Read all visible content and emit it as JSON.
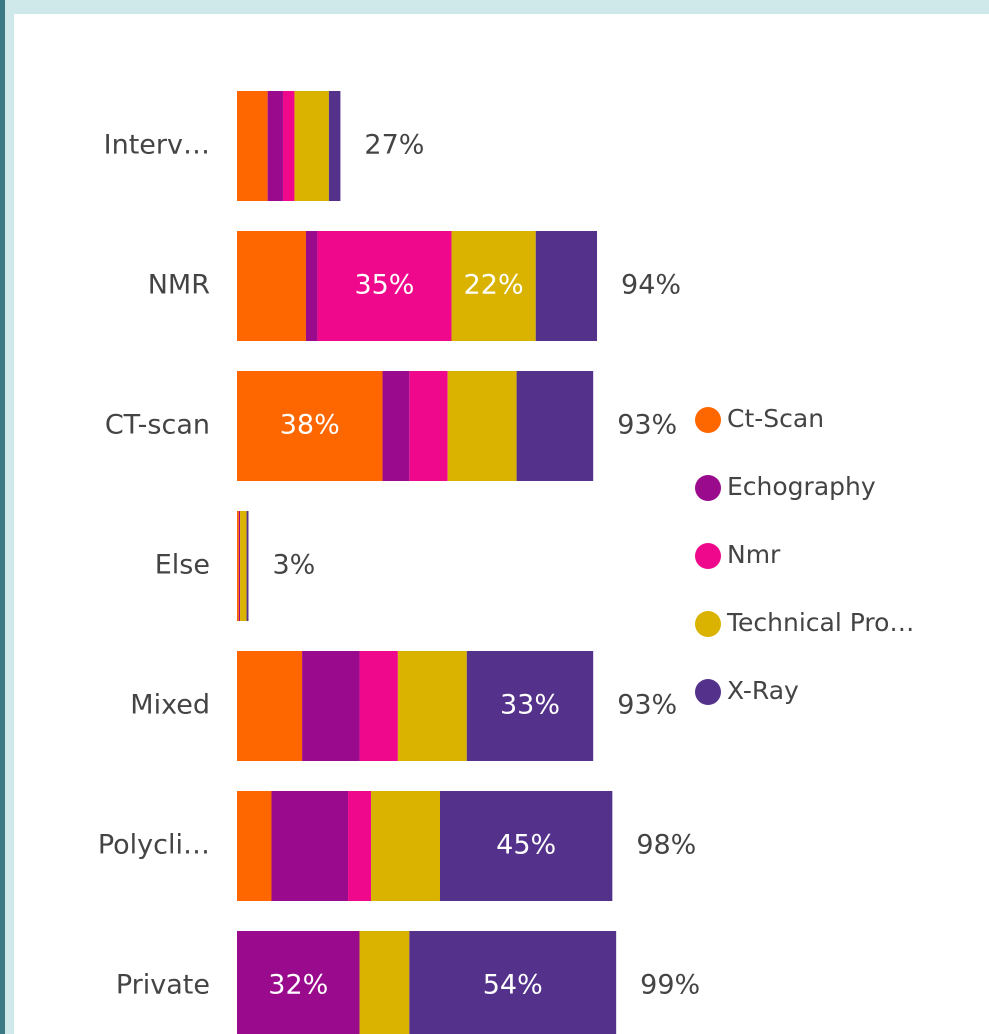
{
  "chart_data": {
    "type": "stacked-bar-horizontal",
    "categories": [
      "Interv…",
      "NMR",
      "CT-scan",
      "Else",
      "Mixed",
      "Polycli…",
      "Private"
    ],
    "series": [
      {
        "name": "Ct-Scan",
        "color": "#fe6600",
        "values": [
          8,
          18,
          38,
          0.5,
          17,
          9,
          0
        ],
        "value_labels": [
          null,
          null,
          "38%",
          null,
          null,
          null,
          null
        ]
      },
      {
        "name": "Echography",
        "color": "#990a8c",
        "values": [
          4,
          3,
          7,
          0.3,
          15,
          20,
          32
        ],
        "value_labels": [
          null,
          null,
          null,
          null,
          null,
          null,
          "32%"
        ]
      },
      {
        "name": "Nmr",
        "color": "#f0088c",
        "values": [
          3,
          35,
          10,
          0,
          10,
          6,
          0
        ],
        "value_labels": [
          null,
          "35%",
          null,
          null,
          null,
          null,
          null
        ]
      },
      {
        "name": "Technical Pro…",
        "color": "#d9b300",
        "values": [
          9,
          22,
          18,
          1.7,
          18,
          18,
          13
        ],
        "value_labels": [
          null,
          "22%",
          null,
          null,
          null,
          null,
          null
        ]
      },
      {
        "name": "X-Ray",
        "color": "#54318a",
        "values": [
          3,
          16,
          20,
          0.5,
          33,
          45,
          54
        ],
        "value_labels": [
          null,
          null,
          null,
          null,
          "33%",
          "45%",
          "54%"
        ]
      }
    ],
    "totals": [
      27,
      94,
      93,
      3,
      93,
      98,
      99
    ],
    "total_labels": [
      "27%",
      "94%",
      "93%",
      "3%",
      "93%",
      "98%",
      "99%"
    ],
    "xlim": [
      0,
      100
    ]
  }
}
